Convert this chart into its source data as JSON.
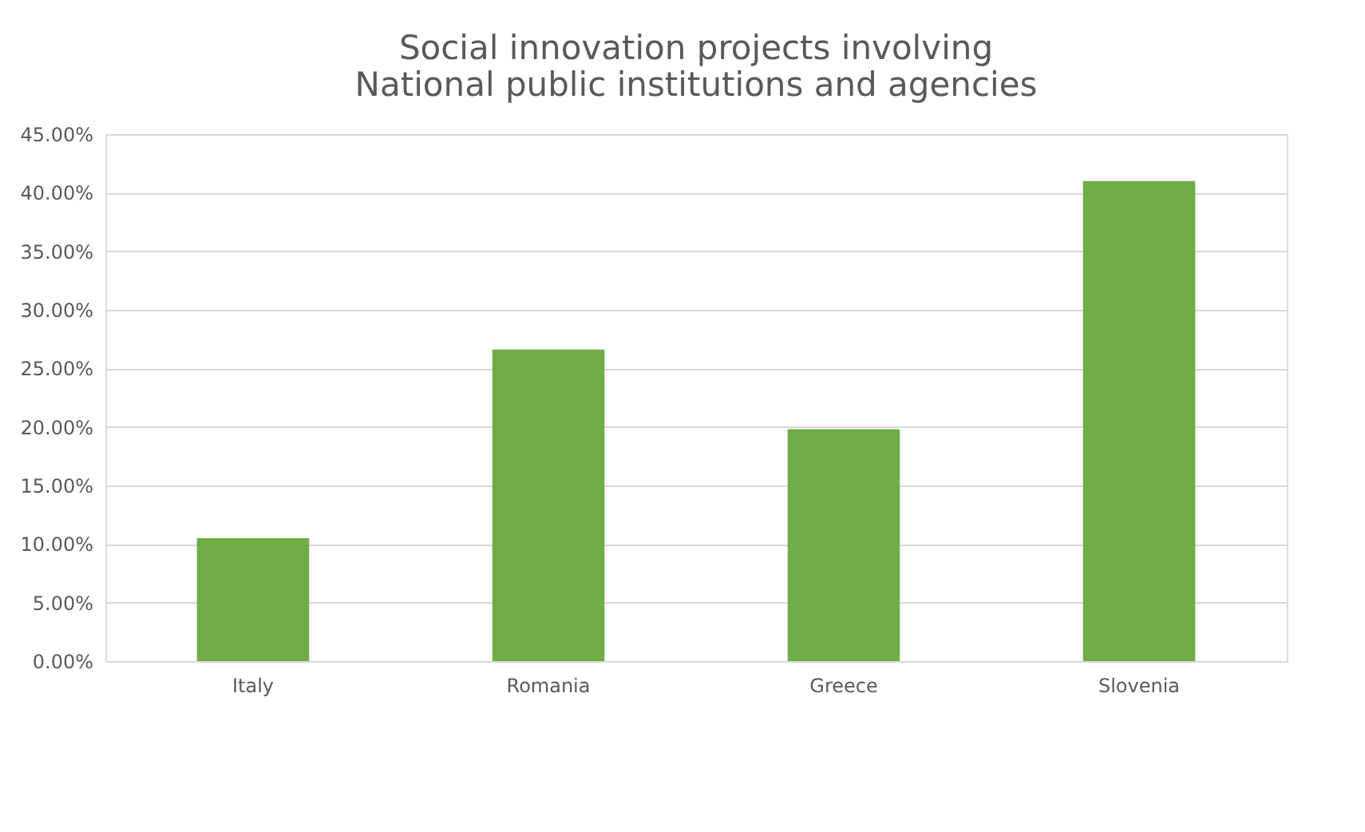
{
  "chart_data": {
    "type": "bar",
    "title": "Social innovation projects involving National public institutions and agencies",
    "categories": [
      "Italy",
      "Romania",
      "Greece",
      "Slovenia"
    ],
    "values": [
      10.5,
      26.6,
      19.8,
      41.0
    ],
    "color": "#70ad47",
    "ylim": [
      0,
      45
    ],
    "yticks": [
      {
        "value": 0,
        "label": "0.00%"
      },
      {
        "value": 5,
        "label": "5.00%"
      },
      {
        "value": 10,
        "label": "10.00%"
      },
      {
        "value": 15,
        "label": "15.00%"
      },
      {
        "value": 20,
        "label": "20.00%"
      },
      {
        "value": 25,
        "label": "25.00%"
      },
      {
        "value": 30,
        "label": "30.00%"
      },
      {
        "value": 35,
        "label": "35.00%"
      },
      {
        "value": 40,
        "label": "40.00%"
      },
      {
        "value": 45,
        "label": "45.00%"
      }
    ],
    "grid": "y"
  }
}
